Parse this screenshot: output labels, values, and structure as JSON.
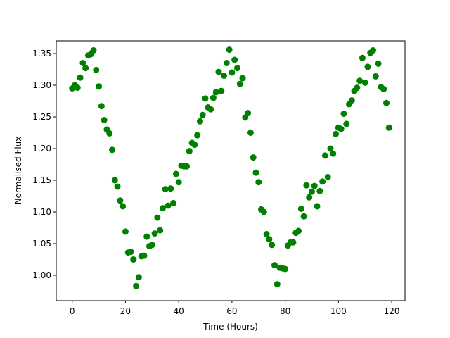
{
  "chart_data": {
    "type": "scatter",
    "title": "",
    "xlabel": "Time (Hours)",
    "ylabel": "Normalised Flux",
    "xlim": [
      -6,
      125
    ],
    "ylim": [
      0.96,
      1.37
    ],
    "xticks": [
      0,
      20,
      40,
      60,
      80,
      100,
      120
    ],
    "yticks": [
      1.0,
      1.05,
      1.1,
      1.15,
      1.2,
      1.25,
      1.3,
      1.35
    ],
    "xtick_labels": [
      "0",
      "20",
      "40",
      "60",
      "80",
      "100",
      "120"
    ],
    "ytick_labels": [
      "1.00",
      "1.05",
      "1.10",
      "1.15",
      "1.20",
      "1.25",
      "1.30",
      "1.35"
    ],
    "grid": false,
    "marker_color": "#008000",
    "x": [
      0,
      1,
      2,
      3,
      4,
      5,
      6,
      7,
      8,
      9,
      10,
      11,
      12,
      13,
      14,
      15,
      16,
      17,
      18,
      19,
      20,
      21,
      22,
      23,
      24,
      25,
      26,
      27,
      28,
      29,
      30,
      31,
      32,
      33,
      34,
      35,
      36,
      37,
      38,
      39,
      40,
      41,
      42,
      43,
      44,
      45,
      46,
      47,
      48,
      49,
      50,
      51,
      52,
      53,
      54,
      55,
      56,
      57,
      58,
      59,
      60,
      61,
      62,
      63,
      64,
      65,
      66,
      67,
      68,
      69,
      70,
      71,
      72,
      73,
      74,
      75,
      76,
      77,
      78,
      79,
      80,
      81,
      82,
      83,
      84,
      85,
      86,
      87,
      88,
      89,
      90,
      91,
      92,
      93,
      94,
      95,
      96,
      97,
      98,
      99,
      100,
      101,
      102,
      103,
      104,
      105,
      106,
      107,
      108,
      109,
      110,
      111,
      112,
      113,
      114,
      115,
      116,
      117,
      118,
      119
    ],
    "y": [
      1.295,
      1.3,
      1.296,
      1.312,
      1.335,
      1.327,
      1.347,
      1.349,
      1.355,
      1.324,
      1.298,
      1.267,
      1.245,
      1.23,
      1.224,
      1.198,
      1.15,
      1.14,
      1.118,
      1.109,
      1.069,
      1.036,
      1.037,
      1.025,
      0.983,
      0.997,
      1.03,
      1.031,
      1.061,
      1.046,
      1.048,
      1.066,
      1.091,
      1.071,
      1.106,
      1.136,
      1.11,
      1.137,
      1.114,
      1.16,
      1.147,
      1.173,
      1.172,
      1.172,
      1.196,
      1.209,
      1.206,
      1.221,
      1.243,
      1.253,
      1.279,
      1.265,
      1.262,
      1.28,
      1.289,
      1.321,
      1.291,
      1.315,
      1.335,
      1.356,
      1.32,
      1.34,
      1.327,
      1.302,
      1.311,
      1.249,
      1.256,
      1.225,
      1.186,
      1.162,
      1.147,
      1.104,
      1.1,
      1.065,
      1.057,
      1.048,
      1.016,
      0.986,
      1.012,
      1.011,
      1.01,
      1.047,
      1.052,
      1.052,
      1.067,
      1.07,
      1.105,
      1.093,
      1.142,
      1.123,
      1.132,
      1.141,
      1.109,
      1.133,
      1.148,
      1.189,
      1.155,
      1.2,
      1.192,
      1.223,
      1.233,
      1.231,
      1.255,
      1.239,
      1.27,
      1.276,
      1.291,
      1.296,
      1.307,
      1.343,
      1.304,
      1.329,
      1.351,
      1.355,
      1.314,
      1.334,
      1.297,
      1.294,
      1.272,
      1.233
    ]
  }
}
